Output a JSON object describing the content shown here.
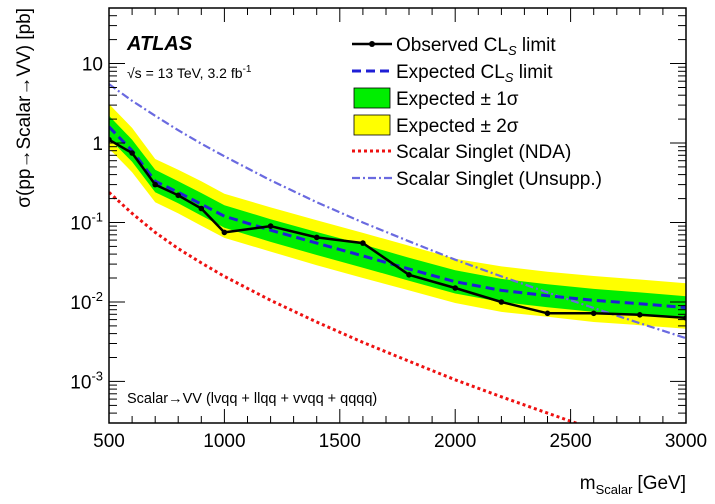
{
  "chart_data": {
    "type": "line",
    "experiment_label": "ATLAS",
    "energy_label": "√s = 13 TeV, 3.2 fb",
    "energy_label_sup": "-1",
    "process_label": "Scalar→VV (lvqq + llqq + vvqq + qqqq)",
    "xlabel": "m",
    "xlabel_sub": "Scalar",
    "xlabel_unit": "[GeV]",
    "ylabel": "σ(pp→Scalar→VV) [pb]",
    "xlim": [
      500,
      3000
    ],
    "ylim": [
      0.0003,
      50
    ],
    "yscale": "log",
    "x_ticks": [
      "500",
      "1000",
      "1500",
      "2000",
      "2500",
      "3000"
    ],
    "y_ticks": [
      {
        "base": "10",
        "exp": "-3",
        "value": 0.001
      },
      {
        "base": "10",
        "exp": "-2",
        "value": 0.01
      },
      {
        "base": "10",
        "exp": "-1",
        "value": 0.1
      },
      {
        "base": "1",
        "exp": "",
        "value": 1
      },
      {
        "base": "10",
        "exp": "",
        "value": 10
      }
    ],
    "legend": {
      "observed": "Observed CL",
      "observed_sub": "S",
      "observed_tail": " limit",
      "expected": "Expected CL",
      "expected_sub": "S",
      "expected_tail": " limit",
      "band1": "Expected ± 1σ",
      "band2": "Expected ± 2σ",
      "nda": "Scalar Singlet (NDA)",
      "unsupp": "Scalar Singlet (Unsupp.)"
    },
    "colors": {
      "observed": "#000000",
      "expected": "#1f1fd6",
      "band1": "#00ee00",
      "band2": "#ffff00",
      "nda": "#ee1111",
      "unsupp": "#6a6ae0"
    },
    "x": [
      500,
      600,
      700,
      800,
      900,
      1000,
      1200,
      1400,
      1600,
      1800,
      2000,
      2200,
      2400,
      2600,
      2800,
      3000
    ],
    "observed": [
      1.1,
      0.75,
      0.3,
      0.22,
      0.15,
      0.075,
      0.09,
      0.065,
      0.055,
      0.022,
      0.015,
      0.01,
      0.0072,
      0.0072,
      0.0069,
      0.0063
    ],
    "expected": [
      1.6,
      0.8,
      0.33,
      0.24,
      0.17,
      0.12,
      0.08,
      0.055,
      0.038,
      0.026,
      0.018,
      0.014,
      0.012,
      0.0105,
      0.0095,
      0.0085
    ],
    "band1_low": [
      1.15,
      0.58,
      0.24,
      0.175,
      0.122,
      0.086,
      0.057,
      0.039,
      0.027,
      0.0185,
      0.0128,
      0.01,
      0.0086,
      0.0075,
      0.0068,
      0.0061
    ],
    "band1_high": [
      2.2,
      1.1,
      0.46,
      0.33,
      0.235,
      0.165,
      0.11,
      0.076,
      0.053,
      0.036,
      0.025,
      0.0195,
      0.0167,
      0.0146,
      0.0132,
      0.0118
    ],
    "band2_low": [
      0.85,
      0.43,
      0.18,
      0.13,
      0.091,
      0.064,
      0.043,
      0.029,
      0.02,
      0.014,
      0.0097,
      0.0075,
      0.0065,
      0.0056,
      0.0051,
      0.0046
    ],
    "band2_high": [
      3.1,
      1.55,
      0.63,
      0.46,
      0.33,
      0.23,
      0.155,
      0.107,
      0.074,
      0.051,
      0.035,
      0.028,
      0.024,
      0.0212,
      0.0192,
      0.0172
    ],
    "nda_x": [
      500,
      600,
      700,
      800,
      900,
      1000,
      1200,
      1400,
      1600,
      1800,
      2000,
      2200,
      2400,
      2600,
      2700
    ],
    "nda": [
      0.24,
      0.13,
      0.075,
      0.047,
      0.031,
      0.021,
      0.0105,
      0.0056,
      0.0031,
      0.0018,
      0.00105,
      0.00064,
      0.0004,
      0.00025,
      0.0002
    ],
    "unsupp_x": [
      500,
      600,
      700,
      800,
      900,
      1000,
      1200,
      1400,
      1600,
      1800,
      2000,
      2200,
      2400,
      2600,
      2800,
      3000
    ],
    "unsupp": [
      5.5,
      3.4,
      2.2,
      1.45,
      0.98,
      0.68,
      0.34,
      0.18,
      0.1,
      0.058,
      0.034,
      0.021,
      0.0132,
      0.0084,
      0.0054,
      0.0035
    ]
  }
}
